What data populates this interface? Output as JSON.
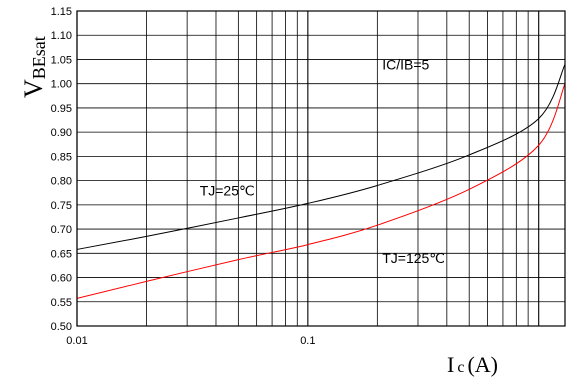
{
  "chart_data": {
    "type": "line",
    "xscale": "log",
    "xlim": [
      0.01,
      1.3
    ],
    "ylim": [
      0.5,
      1.15
    ],
    "yticks": [
      "0.50",
      "0.55",
      "0.60",
      "0.65",
      "0.70",
      "0.75",
      "0.80",
      "0.85",
      "0.90",
      "0.95",
      "1.00",
      "1.05",
      "1.10",
      "1.15"
    ],
    "xticks": [
      "0.01",
      "0.1"
    ],
    "grid": true,
    "ylabel": {
      "main": "V",
      "sub": "BEsat"
    },
    "xlabel": {
      "main": "I",
      "sub": "c",
      "unit": "(A)"
    },
    "annotations": [
      {
        "text": "IC/IB=5",
        "x": 0.21,
        "y": 1.04
      },
      {
        "text": "TJ=25℃",
        "x": 0.034,
        "y": 0.78
      },
      {
        "text": "TJ=125℃",
        "x": 0.21,
        "y": 0.64
      }
    ],
    "series": [
      {
        "name": "TJ=25℃",
        "color": "#000000",
        "x": [
          0.01,
          0.02,
          0.05,
          0.1,
          0.2,
          0.5,
          1.0,
          1.3
        ],
        "y": [
          0.658,
          0.685,
          0.723,
          0.753,
          0.79,
          0.853,
          0.928,
          1.04
        ]
      },
      {
        "name": "TJ=125℃",
        "color": "#ff0000",
        "x": [
          0.01,
          0.02,
          0.05,
          0.1,
          0.2,
          0.5,
          1.0,
          1.3
        ],
        "y": [
          0.557,
          0.592,
          0.637,
          0.668,
          0.708,
          0.782,
          0.873,
          1.0
        ]
      }
    ]
  }
}
